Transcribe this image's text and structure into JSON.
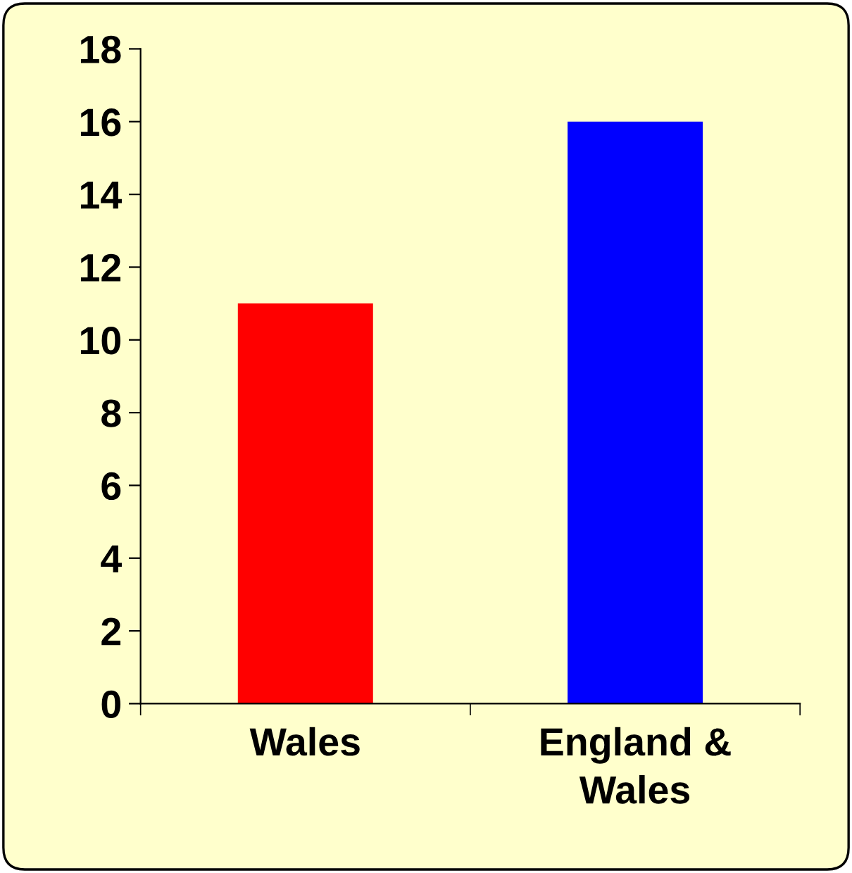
{
  "chart_data": {
    "type": "bar",
    "categories": [
      "Wales",
      "England &\nWales"
    ],
    "values": [
      11,
      16
    ],
    "colors": [
      "#ff0000",
      "#0000ff"
    ],
    "ylim": [
      0,
      18
    ],
    "yticks": [
      0,
      2,
      4,
      6,
      8,
      10,
      12,
      14,
      16,
      18
    ]
  }
}
